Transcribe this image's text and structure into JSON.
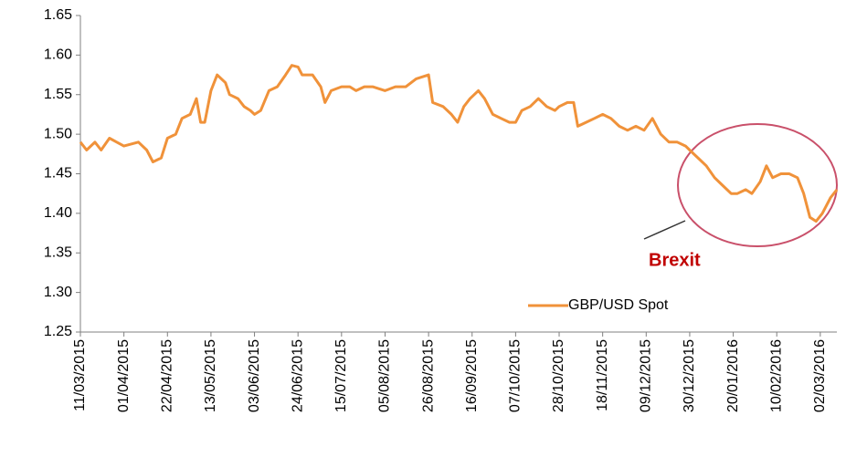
{
  "chart_data": {
    "type": "line",
    "x": [
      "11/03/2015",
      "14/03/2015",
      "18/03/2015",
      "21/03/2015",
      "25/03/2015",
      "01/04/2015",
      "08/04/2015",
      "12/04/2015",
      "15/04/2015",
      "19/04/2015",
      "22/04/2015",
      "26/04/2015",
      "29/04/2015",
      "03/05/2015",
      "06/05/2015",
      "08/05/2015",
      "10/05/2015",
      "13/05/2015",
      "16/05/2015",
      "20/05/2015",
      "22/05/2015",
      "26/05/2015",
      "29/05/2015",
      "01/06/2015",
      "03/06/2015",
      "06/06/2015",
      "10/06/2015",
      "14/06/2015",
      "18/06/2015",
      "21/06/2015",
      "24/06/2015",
      "26/06/2015",
      "01/07/2015",
      "05/07/2015",
      "07/07/2015",
      "10/07/2015",
      "15/07/2015",
      "19/07/2015",
      "22/07/2015",
      "26/07/2015",
      "30/07/2015",
      "05/08/2015",
      "10/08/2015",
      "15/08/2015",
      "20/08/2015",
      "26/08/2015",
      "28/08/2015",
      "02/09/2015",
      "06/09/2015",
      "09/09/2015",
      "12/09/2015",
      "15/09/2015",
      "19/09/2015",
      "22/09/2015",
      "26/09/2015",
      "30/09/2015",
      "04/10/2015",
      "07/10/2015",
      "10/10/2015",
      "14/10/2015",
      "18/10/2015",
      "22/10/2015",
      "26/10/2015",
      "28/10/2015",
      "01/11/2015",
      "04/11/2015",
      "06/11/2015",
      "10/11/2015",
      "14/11/2015",
      "18/11/2015",
      "22/11/2015",
      "26/11/2015",
      "30/11/2015",
      "04/12/2015",
      "08/12/2015",
      "12/12/2015",
      "16/12/2015",
      "20/12/2015",
      "24/12/2015",
      "28/12/2015",
      "30/12/2015",
      "03/01/2016",
      "07/01/2016",
      "11/01/2016",
      "15/01/2016",
      "19/01/2016",
      "22/01/2016",
      "26/01/2016",
      "29/01/2016",
      "02/02/2016",
      "05/02/2016",
      "08/02/2016",
      "12/02/2016",
      "16/02/2016",
      "20/02/2016",
      "23/02/2016",
      "26/02/2016",
      "29/02/2016",
      "03/03/2016",
      "07/03/2016",
      "10/03/2016"
    ],
    "series": [
      {
        "name": "GBP/USD Spot",
        "color": "#f0923a",
        "values": [
          1.49,
          1.48,
          1.49,
          1.48,
          1.495,
          1.485,
          1.49,
          1.48,
          1.465,
          1.47,
          1.495,
          1.5,
          1.52,
          1.525,
          1.545,
          1.515,
          1.515,
          1.555,
          1.575,
          1.565,
          1.55,
          1.545,
          1.535,
          1.53,
          1.525,
          1.53,
          1.555,
          1.56,
          1.575,
          1.587,
          1.585,
          1.575,
          1.575,
          1.56,
          1.54,
          1.555,
          1.56,
          1.56,
          1.555,
          1.56,
          1.56,
          1.555,
          1.56,
          1.56,
          1.57,
          1.575,
          1.54,
          1.535,
          1.525,
          1.515,
          1.535,
          1.545,
          1.555,
          1.545,
          1.525,
          1.52,
          1.515,
          1.515,
          1.53,
          1.535,
          1.545,
          1.535,
          1.53,
          1.535,
          1.54,
          1.54,
          1.51,
          1.515,
          1.52,
          1.525,
          1.52,
          1.51,
          1.505,
          1.51,
          1.505,
          1.52,
          1.5,
          1.49,
          1.49,
          1.485,
          1.48,
          1.47,
          1.46,
          1.445,
          1.435,
          1.425,
          1.425,
          1.43,
          1.425,
          1.44,
          1.46,
          1.445,
          1.45,
          1.45,
          1.445,
          1.425,
          1.395,
          1.39,
          1.4,
          1.42,
          1.43
        ]
      }
    ],
    "xlim": [
      "11/03/2015",
      "10/03/2016"
    ],
    "xticks": [
      "11/03/2015",
      "01/04/2015",
      "22/04/2015",
      "13/05/2015",
      "03/06/2015",
      "24/06/2015",
      "15/07/2015",
      "05/08/2015",
      "26/08/2015",
      "16/09/2015",
      "07/10/2015",
      "28/10/2015",
      "18/11/2015",
      "09/12/2015",
      "30/12/2015",
      "20/01/2016",
      "10/02/2016",
      "02/03/2016"
    ],
    "ylim": [
      1.25,
      1.65
    ],
    "yticks": [
      1.25,
      {
        "value": 1.3,
        "label": "1.30"
      },
      1.35,
      {
        "value": 1.4,
        "label": "1.40"
      },
      1.45,
      {
        "value": 1.5,
        "label": "1.50"
      },
      1.55,
      {
        "value": 1.6,
        "label": "1.60"
      },
      1.65
    ],
    "annotations": [
      "Brexit"
    ]
  }
}
